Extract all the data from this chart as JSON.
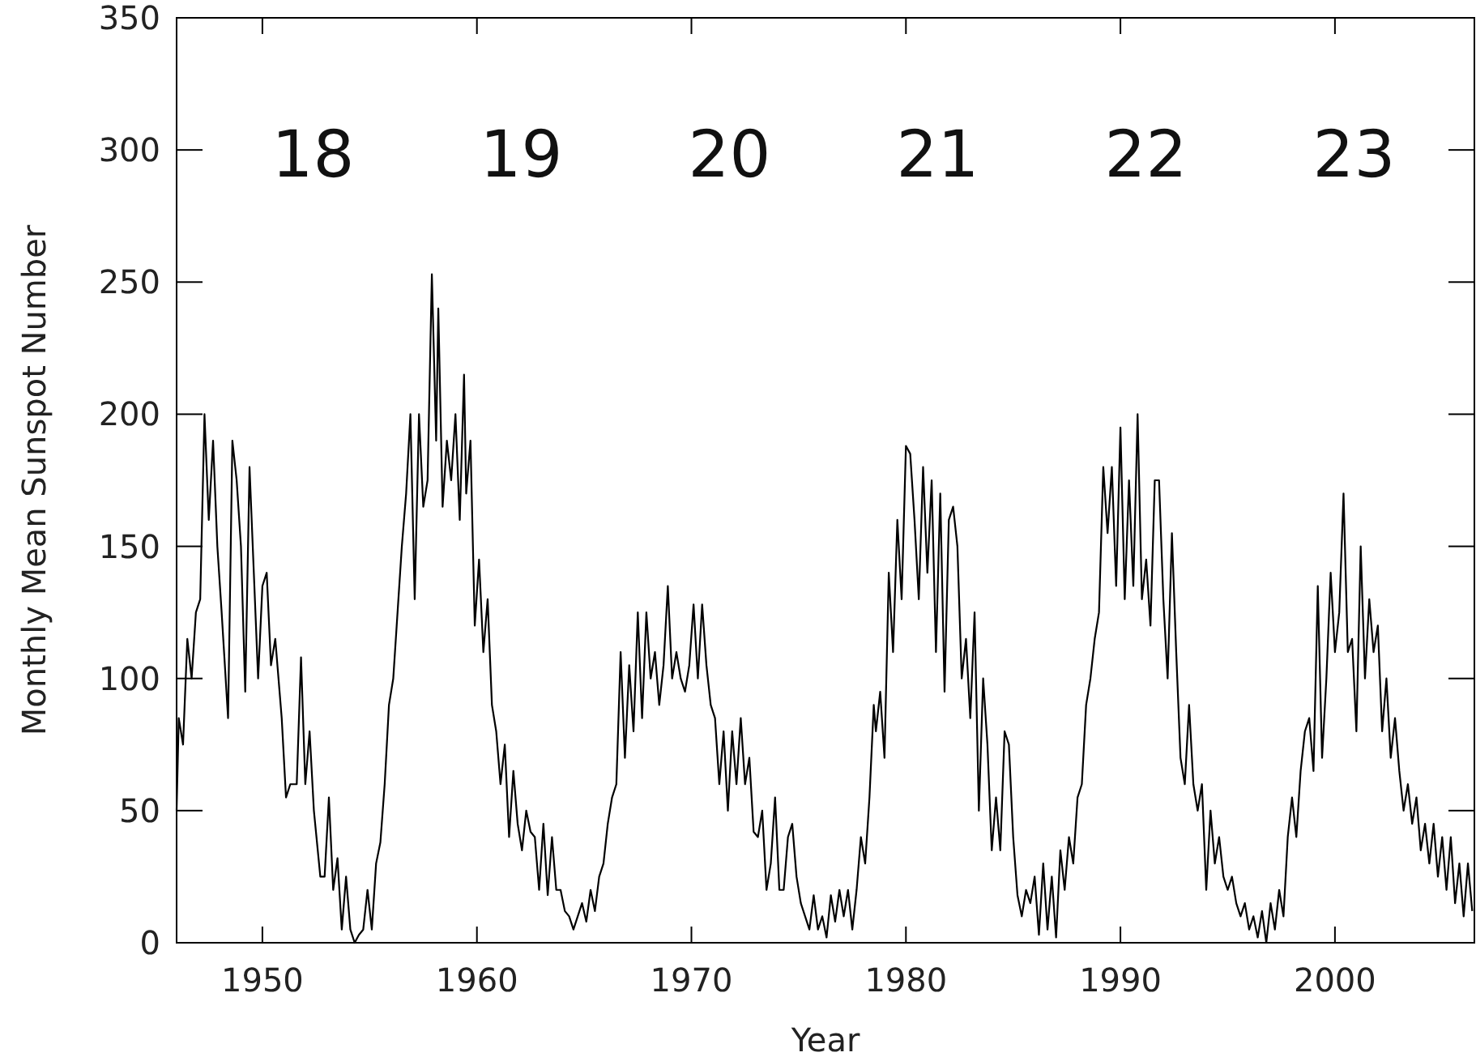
{
  "chart_data": {
    "type": "line",
    "xlabel": "Year",
    "ylabel": "Monthly Mean Sunspot Number",
    "xlim": [
      1946,
      2006.5
    ],
    "xticks": [
      1950,
      1960,
      1970,
      1980,
      1990,
      2000
    ],
    "ylim": [
      0,
      350
    ],
    "yticks": [
      0,
      50,
      100,
      150,
      200,
      250,
      300,
      350
    ],
    "grid": false,
    "line_style": "solid",
    "annotations": [
      "18",
      "19",
      "20",
      "21",
      "22",
      "23"
    ],
    "series": [
      {
        "color": "#000000",
        "x": [
          1946.0,
          1946.1,
          1946.3,
          1946.5,
          1946.7,
          1946.9,
          1947.1,
          1947.3,
          1947.5,
          1947.7,
          1947.9,
          1948.1,
          1948.4,
          1948.6,
          1948.8,
          1949.0,
          1949.2,
          1949.4,
          1949.6,
          1949.8,
          1950.0,
          1950.2,
          1950.4,
          1950.6,
          1950.9,
          1951.1,
          1951.3,
          1951.6,
          1951.8,
          1952.0,
          1952.2,
          1952.4,
          1952.7,
          1952.9,
          1953.1,
          1953.3,
          1953.5,
          1953.7,
          1953.9,
          1954.1,
          1954.3,
          1954.5,
          1954.7,
          1954.9,
          1955.1,
          1955.3,
          1955.5,
          1955.7,
          1955.9,
          1956.1,
          1956.3,
          1956.5,
          1956.7,
          1956.9,
          1957.1,
          1957.3,
          1957.5,
          1957.7,
          1957.9,
          1958.1,
          1958.2,
          1958.4,
          1958.6,
          1958.8,
          1959.0,
          1959.2,
          1959.4,
          1959.5,
          1959.7,
          1959.9,
          1960.1,
          1960.3,
          1960.5,
          1960.7,
          1960.9,
          1961.1,
          1961.3,
          1961.5,
          1961.7,
          1961.9,
          1962.1,
          1962.3,
          1962.5,
          1962.7,
          1962.9,
          1963.1,
          1963.3,
          1963.5,
          1963.7,
          1963.9,
          1964.1,
          1964.3,
          1964.5,
          1964.7,
          1964.9,
          1965.1,
          1965.3,
          1965.5,
          1965.7,
          1965.9,
          1966.1,
          1966.3,
          1966.5,
          1966.7,
          1966.9,
          1967.1,
          1967.3,
          1967.5,
          1967.7,
          1967.9,
          1968.1,
          1968.3,
          1968.5,
          1968.7,
          1968.9,
          1969.1,
          1969.3,
          1969.5,
          1969.7,
          1969.9,
          1970.1,
          1970.3,
          1970.5,
          1970.7,
          1970.9,
          1971.1,
          1971.3,
          1971.5,
          1971.7,
          1971.9,
          1972.1,
          1972.3,
          1972.5,
          1972.7,
          1972.9,
          1973.1,
          1973.3,
          1973.5,
          1973.7,
          1973.9,
          1974.1,
          1974.3,
          1974.5,
          1974.7,
          1974.9,
          1975.1,
          1975.3,
          1975.5,
          1975.7,
          1975.9,
          1976.1,
          1976.3,
          1976.5,
          1976.7,
          1976.9,
          1977.1,
          1977.3,
          1977.5,
          1977.7,
          1977.9,
          1978.1,
          1978.3,
          1978.5,
          1978.6,
          1978.8,
          1979.0,
          1979.2,
          1979.4,
          1979.6,
          1979.8,
          1980.0,
          1980.2,
          1980.4,
          1980.6,
          1980.8,
          1981.0,
          1981.2,
          1981.4,
          1981.6,
          1981.8,
          1982.0,
          1982.2,
          1982.4,
          1982.6,
          1982.8,
          1983.0,
          1983.2,
          1983.4,
          1983.6,
          1983.8,
          1984.0,
          1984.2,
          1984.4,
          1984.6,
          1984.8,
          1985.0,
          1985.2,
          1985.4,
          1985.6,
          1985.8,
          1986.0,
          1986.2,
          1986.4,
          1986.6,
          1986.8,
          1987.0,
          1987.2,
          1987.4,
          1987.6,
          1987.8,
          1988.0,
          1988.2,
          1988.4,
          1988.6,
          1988.8,
          1989.0,
          1989.2,
          1989.4,
          1989.6,
          1989.8,
          1990.0,
          1990.2,
          1990.4,
          1990.6,
          1990.8,
          1991.0,
          1991.2,
          1991.4,
          1991.6,
          1991.8,
          1992.0,
          1992.2,
          1992.4,
          1992.6,
          1992.8,
          1993.0,
          1993.2,
          1993.4,
          1993.6,
          1993.8,
          1994.0,
          1994.2,
          1994.4,
          1994.6,
          1994.8,
          1995.0,
          1995.2,
          1995.4,
          1995.6,
          1995.8,
          1996.0,
          1996.2,
          1996.4,
          1996.6,
          1996.8,
          1997.0,
          1997.2,
          1997.4,
          1997.6,
          1997.8,
          1998.0,
          1998.2,
          1998.4,
          1998.6,
          1998.8,
          1999.0,
          1999.2,
          1999.4,
          1999.6,
          1999.8,
          2000.0,
          2000.2,
          2000.4,
          2000.6,
          2000.8,
          2001.0,
          2001.2,
          2001.4,
          2001.6,
          2001.8,
          2002.0,
          2002.2,
          2002.4,
          2002.6,
          2002.8,
          2003.0,
          2003.2,
          2003.4,
          2003.6,
          2003.8,
          2004.0,
          2004.2,
          2004.4,
          2004.6,
          2004.8,
          2005.0,
          2005.2,
          2005.4,
          2005.6,
          2005.8,
          2006.0,
          2006.2,
          2006.4
        ],
        "values": [
          50,
          85,
          75,
          115,
          100,
          125,
          130,
          200,
          160,
          190,
          150,
          125,
          85,
          190,
          175,
          150,
          95,
          180,
          140,
          100,
          135,
          140,
          105,
          115,
          85,
          55,
          60,
          60,
          108,
          60,
          80,
          50,
          25,
          25,
          55,
          20,
          32,
          5,
          25,
          5,
          0,
          3,
          5,
          20,
          5,
          30,
          38,
          60,
          90,
          100,
          125,
          150,
          170,
          200,
          130,
          200,
          165,
          175,
          253,
          190,
          240,
          165,
          190,
          175,
          200,
          160,
          215,
          170,
          190,
          120,
          145,
          110,
          130,
          90,
          80,
          60,
          75,
          40,
          65,
          45,
          35,
          50,
          42,
          40,
          20,
          45,
          18,
          40,
          20,
          20,
          12,
          10,
          5,
          10,
          15,
          8,
          20,
          12,
          25,
          30,
          45,
          55,
          60,
          110,
          70,
          105,
          80,
          125,
          85,
          125,
          100,
          110,
          90,
          105,
          135,
          100,
          110,
          100,
          95,
          105,
          128,
          100,
          128,
          105,
          90,
          85,
          60,
          80,
          50,
          80,
          60,
          85,
          60,
          70,
          42,
          40,
          50,
          20,
          30,
          55,
          20,
          20,
          40,
          45,
          25,
          15,
          10,
          5,
          18,
          5,
          10,
          2,
          18,
          8,
          20,
          10,
          20,
          5,
          20,
          40,
          30,
          55,
          90,
          80,
          95,
          70,
          140,
          110,
          160,
          130,
          188,
          185,
          160,
          130,
          180,
          140,
          175,
          110,
          170,
          95,
          160,
          165,
          150,
          100,
          115,
          85,
          125,
          50,
          100,
          75,
          35,
          55,
          35,
          80,
          75,
          40,
          18,
          10,
          20,
          15,
          25,
          3,
          30,
          5,
          25,
          2,
          35,
          20,
          40,
          30,
          55,
          60,
          90,
          100,
          115,
          125,
          180,
          155,
          180,
          135,
          195,
          130,
          175,
          135,
          200,
          130,
          145,
          120,
          175,
          175,
          130,
          100,
          155,
          110,
          70,
          60,
          90,
          60,
          50,
          60,
          20,
          50,
          30,
          40,
          25,
          20,
          25,
          15,
          10,
          15,
          5,
          10,
          2,
          12,
          0,
          15,
          5,
          20,
          10,
          40,
          55,
          40,
          65,
          80,
          85,
          65,
          135,
          70,
          100,
          140,
          110,
          125,
          170,
          110,
          115,
          80,
          150,
          100,
          130,
          110,
          120,
          80,
          100,
          70,
          85,
          65,
          50,
          60,
          45,
          55,
          35,
          45,
          30,
          45,
          25,
          40,
          20,
          40,
          15,
          30,
          10,
          30,
          12
        ]
      }
    ]
  }
}
